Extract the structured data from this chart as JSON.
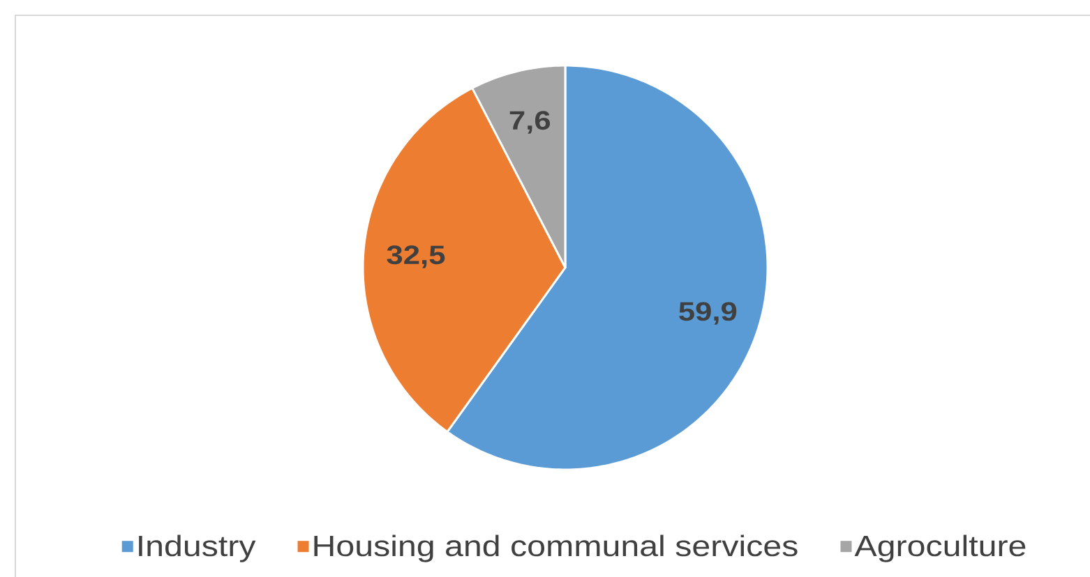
{
  "chart_data": {
    "type": "pie",
    "categories": [
      "Industry",
      "Housing and communal services",
      "Agroculture"
    ],
    "values": [
      59.9,
      32.5,
      7.6
    ],
    "colors": [
      "#5b9bd5",
      "#ed7d31",
      "#a5a5a5"
    ],
    "value_labels": [
      "59,9",
      "32,5",
      "7,6"
    ],
    "legend": "bottom"
  }
}
